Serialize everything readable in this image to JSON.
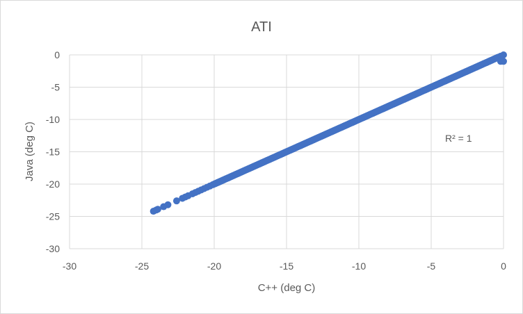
{
  "chart_data": {
    "type": "scatter",
    "title": "ATI",
    "xlabel": "C++ (deg C)",
    "ylabel": "Java (deg C)",
    "xlim": [
      -30,
      0
    ],
    "ylim": [
      -30,
      0
    ],
    "x_ticks": [
      -30,
      -25,
      -20,
      -15,
      -10,
      -5,
      0
    ],
    "y_ticks": [
      0,
      -5,
      -10,
      -15,
      -20,
      -25,
      -30
    ],
    "x_tick_labels": [
      "-30",
      "-25",
      "-20",
      "-15",
      "-10",
      "-5",
      "0"
    ],
    "y_tick_labels": [
      "0",
      "-5",
      "-10",
      "-15",
      "-20",
      "-25",
      "-30"
    ],
    "grid": true,
    "marker_color": "#4472c4",
    "annotation": "R² = 1",
    "series": [
      {
        "points": [
          [
            -24.2,
            -24.2
          ],
          [
            -24.0,
            -24.0
          ],
          [
            -23.9,
            -23.9
          ],
          [
            -23.5,
            -23.5
          ],
          [
            -23.2,
            -23.2
          ],
          [
            -22.6,
            -22.6
          ],
          [
            -22.2,
            -22.2
          ],
          [
            -22.0,
            -22.0
          ],
          [
            -21.8,
            -21.8
          ],
          [
            -21.5,
            -21.5
          ],
          [
            -21.3,
            -21.3
          ],
          [
            -21.1,
            -21.1
          ],
          [
            -20.9,
            -20.9
          ],
          [
            -20.7,
            -20.7
          ],
          [
            -20.5,
            -20.5
          ],
          [
            -20.3,
            -20.3
          ],
          [
            -20.1,
            -20.1
          ],
          [
            -0.4,
            -0.4
          ],
          [
            -0.2,
            -0.2
          ],
          [
            0.0,
            0.0
          ],
          [
            -0.1,
            -0.8
          ],
          [
            0.0,
            -1.0
          ],
          [
            -0.2,
            -1.0
          ]
        ],
        "dense_ranges": [
          [
            -20.0,
            -0.3
          ]
        ]
      }
    ]
  }
}
